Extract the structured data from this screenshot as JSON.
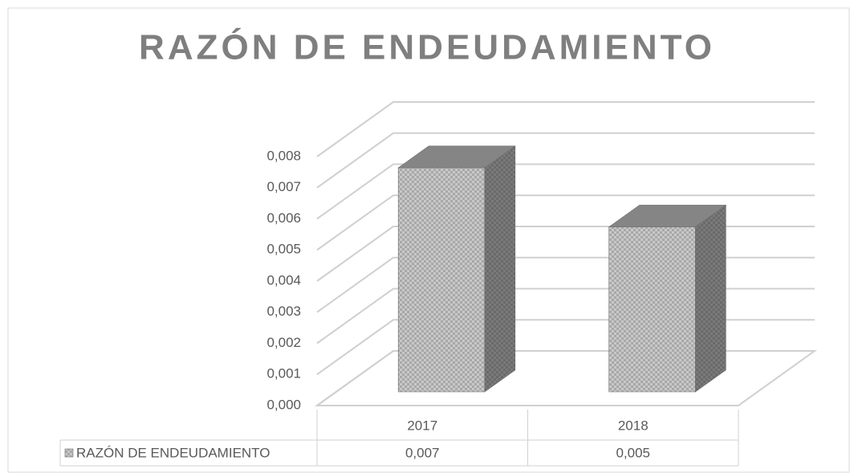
{
  "chart_data": {
    "type": "bar3d",
    "title": "RAZÓN DE ENDEUDAMIENTO",
    "categories": [
      "2017",
      "2018"
    ],
    "series": [
      {
        "name": "RAZÓN DE ENDEUDAMIENTO",
        "color": "#c4c4c4",
        "values": [
          0.0072,
          0.0053
        ],
        "value_labels": [
          "0,007",
          "0,005"
        ]
      }
    ],
    "ylim": [
      0,
      0.008
    ],
    "yticks": [
      {
        "value": 0,
        "label": "0,000"
      },
      {
        "value": 0.001,
        "label": "0,001"
      },
      {
        "value": 0.002,
        "label": "0,002"
      },
      {
        "value": 0.003,
        "label": "0,003"
      },
      {
        "value": 0.004,
        "label": "0,004"
      },
      {
        "value": 0.005,
        "label": "0,005"
      },
      {
        "value": 0.006,
        "label": "0,006"
      },
      {
        "value": 0.007,
        "label": "0,007"
      },
      {
        "value": 0.008,
        "label": "0,008"
      }
    ],
    "grid": true,
    "data_table": true
  }
}
